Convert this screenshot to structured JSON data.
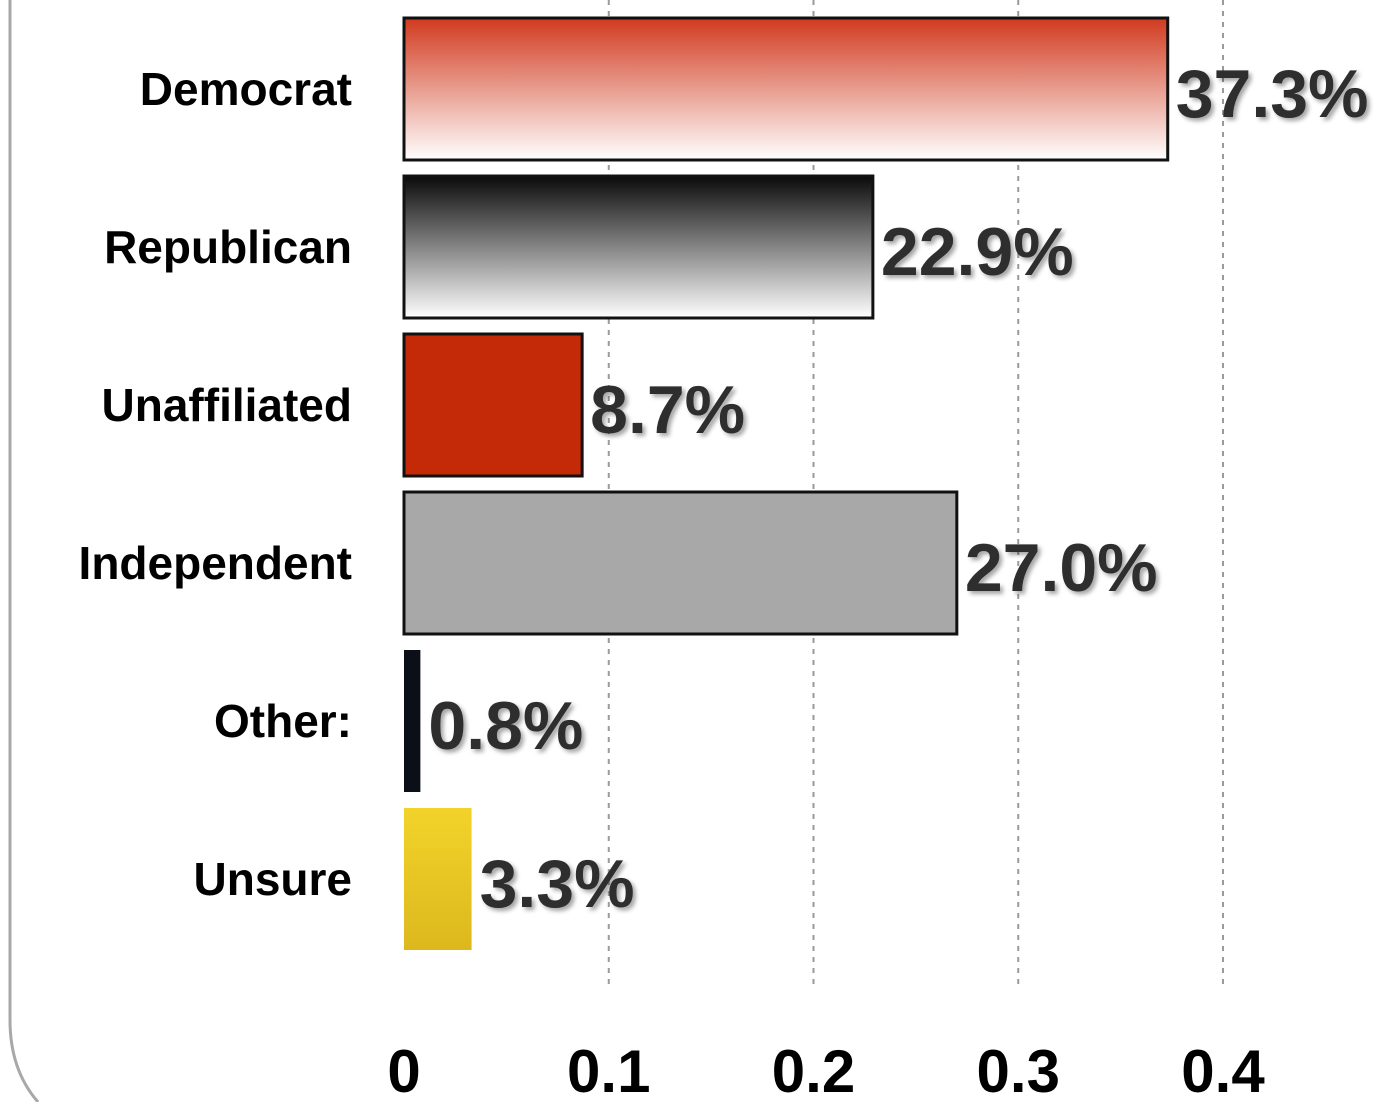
{
  "chart_data": {
    "type": "bar",
    "orientation": "horizontal",
    "categories": [
      "Democrat",
      "Republican",
      "Unaffiliated",
      "Independent",
      "Other:",
      "Unsure"
    ],
    "values": [
      0.373,
      0.229,
      0.087,
      0.27,
      0.008,
      0.033
    ],
    "value_labels": [
      "37.3%",
      "22.9%",
      "8.7%",
      "27.0%",
      "0.8%",
      "3.3%"
    ],
    "bar_colors": [
      {
        "top": "#d13a1f",
        "bottom": "#ffffff",
        "style": "gradient"
      },
      {
        "top": "#0a0a0a",
        "bottom": "#ffffff",
        "style": "gradient"
      },
      {
        "top": "#c42a08",
        "bottom": "#c42a08",
        "style": "solid"
      },
      {
        "top": "#a8a8a8",
        "bottom": "#a8a8a8",
        "style": "solid"
      },
      {
        "top": "#0b0f17",
        "bottom": "#0b0f17",
        "style": "solid"
      },
      {
        "top": "#f2d32a",
        "bottom": "#dcb81e",
        "style": "gradient"
      }
    ],
    "x_ticks": [
      0,
      0.1,
      0.2,
      0.3,
      0.4
    ],
    "x_tick_labels": [
      "0",
      "0.1",
      "0.2",
      "0.3",
      "0.4"
    ],
    "xlim": [
      0,
      0.4
    ],
    "grid": "vertical dashed",
    "title": "",
    "xlabel": "",
    "ylabel": ""
  }
}
